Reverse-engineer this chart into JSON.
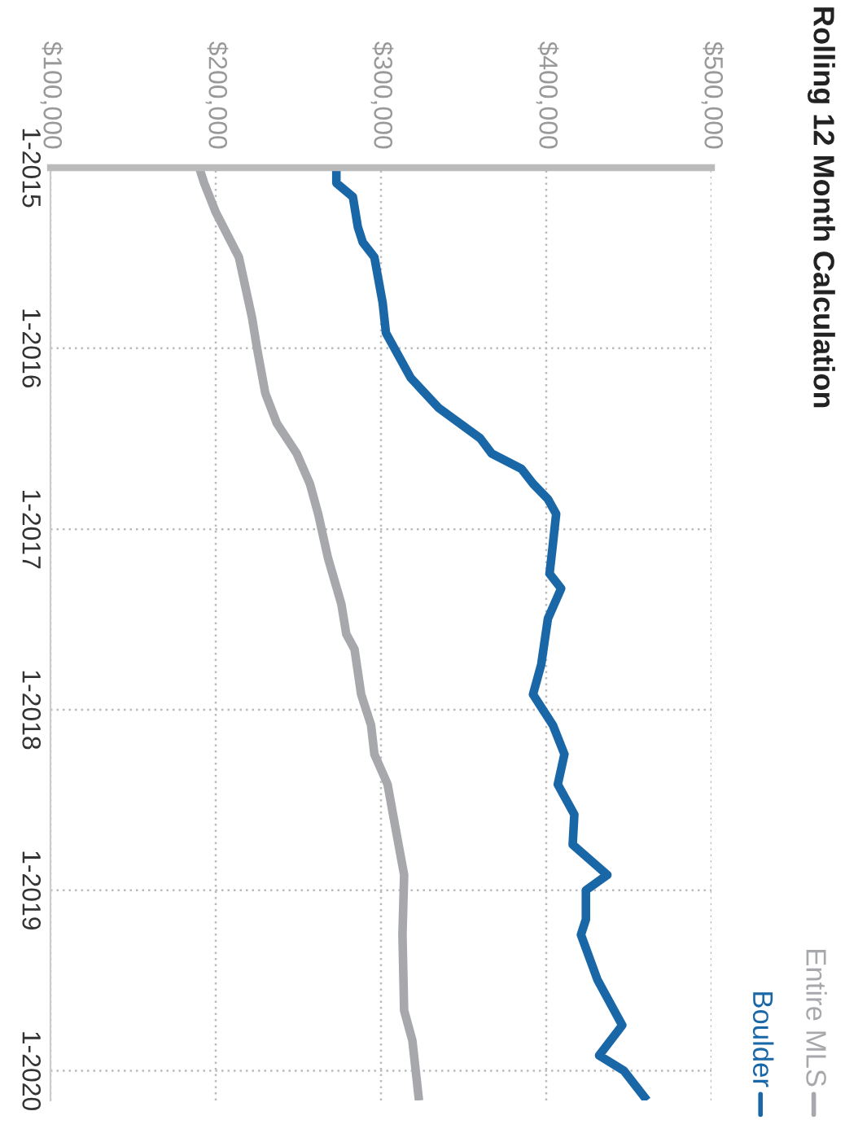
{
  "chart_data": {
    "type": "line",
    "title": "Rolling 12 Month Calculation",
    "orientation": "horizontal",
    "xlim": [
      100000,
      500000
    ],
    "xticks": [
      {
        "value": 100000,
        "label": "$100,000"
      },
      {
        "value": 200000,
        "label": "$200,000"
      },
      {
        "value": 300000,
        "label": "$300,000"
      },
      {
        "value": 400000,
        "label": "$400,000"
      },
      {
        "value": 500000,
        "label": "$500,000"
      }
    ],
    "ylim": [
      "2020-03",
      "2015-01"
    ],
    "yticks": [
      {
        "value": "2015-01",
        "label": "1-2015"
      },
      {
        "value": "2016-01",
        "label": "1-2016"
      },
      {
        "value": "2017-01",
        "label": "1-2017"
      },
      {
        "value": "2018-01",
        "label": "1-2018"
      },
      {
        "value": "2019-01",
        "label": "1-2019"
      },
      {
        "value": "2020-01",
        "label": "1-2020"
      }
    ],
    "grid": true,
    "legend": "bottom right",
    "series": [
      {
        "name": "Entire MLS",
        "color": "#a7a8ab",
        "x": [
          "2015-01",
          "2015-02",
          "2015-04",
          "2015-07",
          "2015-11",
          "2016-01",
          "2016-04",
          "2016-06",
          "2016-08",
          "2016-10",
          "2016-12",
          "2017-03",
          "2017-06",
          "2017-08",
          "2017-09",
          "2017-12",
          "2018-02",
          "2018-04",
          "2018-06",
          "2018-09",
          "2018-12",
          "2019-04",
          "2019-09",
          "2019-11",
          "2020-03"
        ],
        "values": [
          190000,
          193000,
          200000,
          214000,
          222000,
          225000,
          230000,
          237000,
          249000,
          257000,
          262000,
          268000,
          276000,
          279000,
          284000,
          288000,
          294000,
          296000,
          304000,
          309000,
          314000,
          313000,
          314000,
          319000,
          323000
        ]
      },
      {
        "name": "Boulder",
        "color": "#1a67a8",
        "x": [
          "2015-01",
          "2015-02",
          "2015-03",
          "2015-05",
          "2015-06",
          "2015-07",
          "2015-10",
          "2015-12",
          "2016-03",
          "2016-05",
          "2016-07",
          "2016-08",
          "2016-09",
          "2016-10",
          "2016-11",
          "2016-12",
          "2017-02",
          "2017-04",
          "2017-05",
          "2017-07",
          "2017-10",
          "2017-12",
          "2018-02",
          "2018-04",
          "2018-06",
          "2018-08",
          "2018-10",
          "2018-12",
          "2019-01",
          "2019-03",
          "2019-04",
          "2019-07",
          "2019-10",
          "2019-12",
          "2020-01",
          "2020-03"
        ],
        "values": [
          273000,
          273000,
          283000,
          286000,
          289000,
          296000,
          301000,
          303000,
          318000,
          335000,
          360000,
          367000,
          385000,
          392000,
          401000,
          406000,
          404000,
          402000,
          409000,
          401000,
          397000,
          392000,
          404000,
          411000,
          407000,
          417000,
          416000,
          437000,
          424000,
          424000,
          421000,
          431000,
          446000,
          432000,
          447000,
          461000
        ]
      }
    ]
  }
}
